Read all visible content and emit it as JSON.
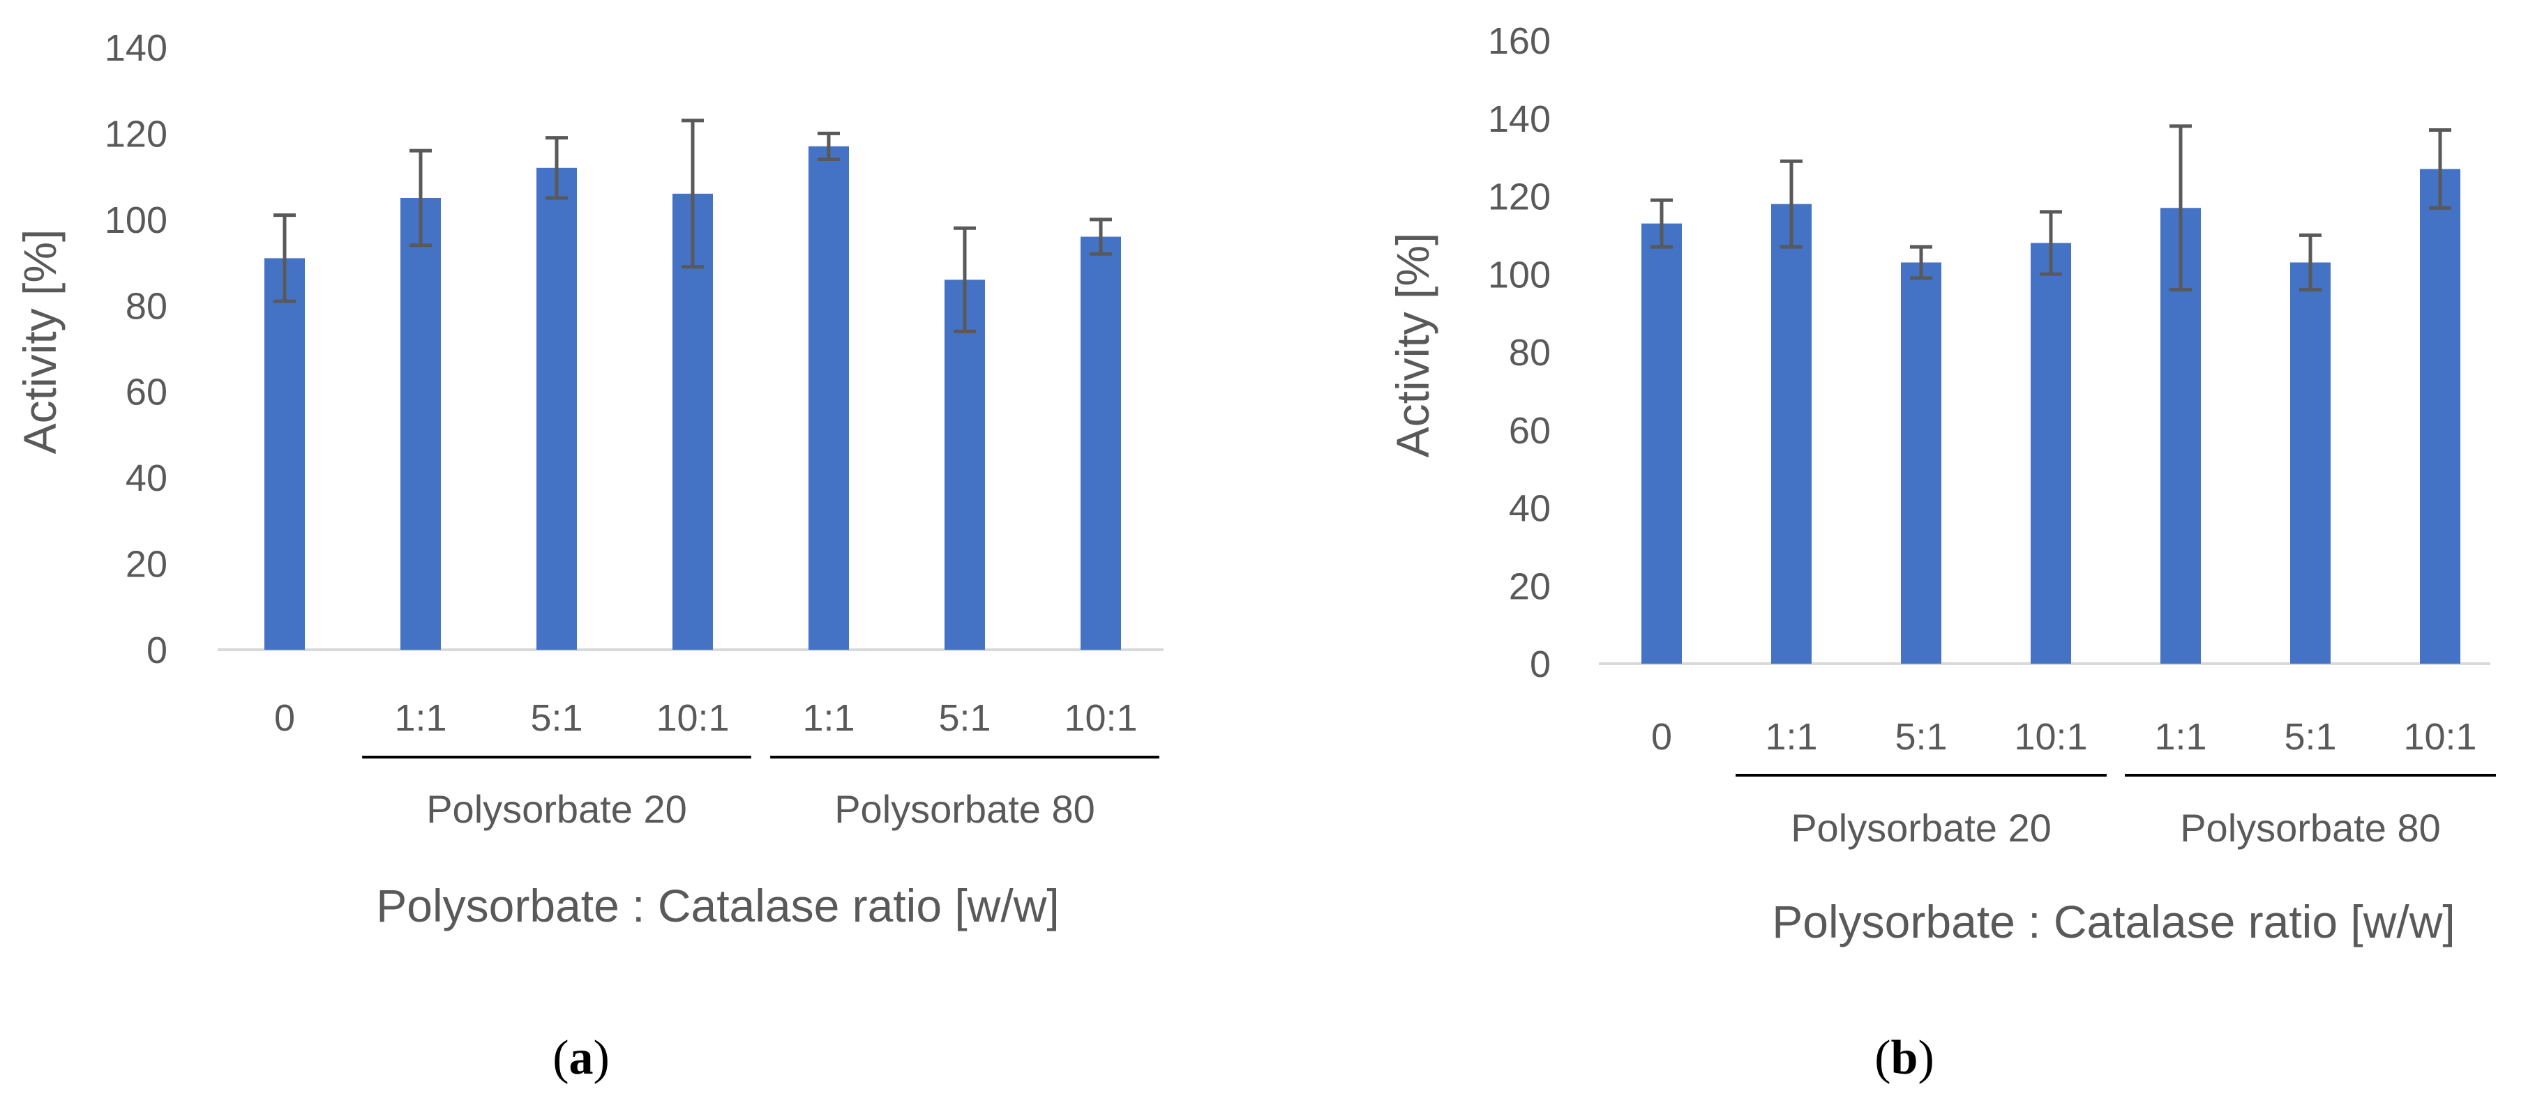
{
  "chart_data": [
    {
      "type": "bar",
      "panel": "a",
      "ylabel": "Activity [%]",
      "xlabel": "Polysorbate : Catalase ratio [w/w]",
      "ylim": [
        0,
        140
      ],
      "yticks": [
        0,
        20,
        40,
        60,
        80,
        100,
        120,
        140
      ],
      "categories": [
        "0",
        "1:1",
        "5:1",
        "10:1",
        "1:1",
        "5:1",
        "10:1"
      ],
      "values": [
        91,
        105,
        112,
        106,
        117,
        86,
        96
      ],
      "errors": [
        10,
        11,
        7,
        17,
        3,
        12,
        4
      ],
      "groups": [
        {
          "label": "Polysorbate 20",
          "category_indices": [
            1,
            2,
            3
          ]
        },
        {
          "label": "Polysorbate 80",
          "category_indices": [
            4,
            5,
            6
          ]
        }
      ],
      "bar_color": "#4472C4",
      "error_color": "#595959"
    },
    {
      "type": "bar",
      "panel": "b",
      "ylabel": "Activity [%]",
      "xlabel": "Polysorbate : Catalase ratio [w/w]",
      "ylim": [
        0,
        160
      ],
      "yticks": [
        0,
        20,
        40,
        60,
        80,
        100,
        120,
        140,
        160
      ],
      "categories": [
        "0",
        "1:1",
        "5:1",
        "10:1",
        "1:1",
        "5:1",
        "10:1"
      ],
      "values": [
        113,
        118,
        103,
        108,
        117,
        103,
        127
      ],
      "errors": [
        6,
        11,
        4,
        8,
        21,
        7,
        10
      ],
      "groups": [
        {
          "label": "Polysorbate 20",
          "category_indices": [
            1,
            2,
            3
          ]
        },
        {
          "label": "Polysorbate 80",
          "category_indices": [
            4,
            5,
            6
          ]
        }
      ],
      "bar_color": "#4472C4",
      "error_color": "#595959"
    }
  ],
  "panel_labels": [
    "a",
    "b"
  ]
}
